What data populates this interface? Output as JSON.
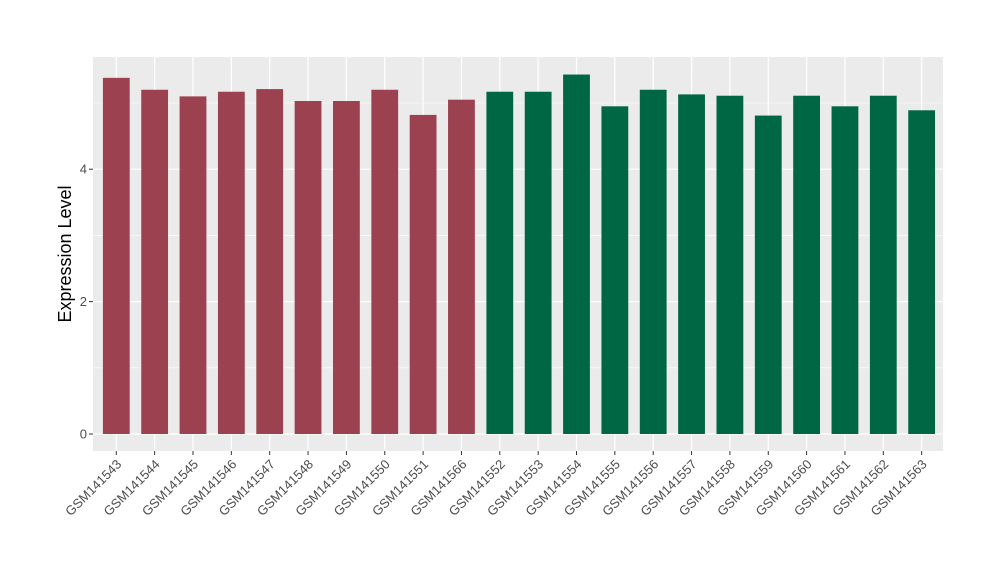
{
  "chart_data": {
    "type": "bar",
    "title": "",
    "xlabel": "",
    "ylabel": "Expression Level",
    "ylim": [
      0,
      5.7
    ],
    "yticks": [
      0,
      2,
      4
    ],
    "grid": true,
    "legend": "none",
    "panel_background": "#ebebeb",
    "grid_color": "#ffffff",
    "categories": [
      "GSM141543",
      "GSM141544",
      "GSM141545",
      "GSM141546",
      "GSM141547",
      "GSM141548",
      "GSM141549",
      "GSM141550",
      "GSM141551",
      "GSM141566",
      "GSM141552",
      "GSM141553",
      "GSM141554",
      "GSM141555",
      "GSM141556",
      "GSM141557",
      "GSM141558",
      "GSM141559",
      "GSM141560",
      "GSM141561",
      "GSM141562",
      "GSM141563"
    ],
    "values": [
      5.38,
      5.2,
      5.1,
      5.17,
      5.21,
      5.03,
      5.03,
      5.2,
      4.82,
      5.05,
      5.17,
      5.17,
      5.43,
      4.95,
      5.2,
      5.13,
      5.11,
      4.81,
      5.11,
      4.95,
      5.11,
      4.89
    ],
    "bar_colors": [
      "#9b4150",
      "#9b4150",
      "#9b4150",
      "#9b4150",
      "#9b4150",
      "#9b4150",
      "#9b4150",
      "#9b4150",
      "#9b4150",
      "#9b4150",
      "#006744",
      "#006744",
      "#006744",
      "#006744",
      "#006744",
      "#006744",
      "#006744",
      "#006744",
      "#006744",
      "#006744",
      "#006744",
      "#006744"
    ]
  }
}
